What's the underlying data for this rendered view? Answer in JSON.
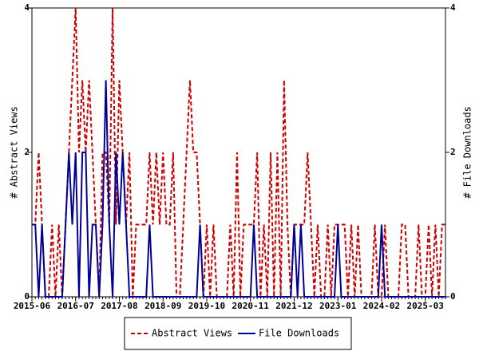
{
  "chart_data": {
    "type": "line",
    "x": [
      "2015-06",
      "2015-07",
      "2015-08",
      "2015-09",
      "2015-10",
      "2015-11",
      "2015-12",
      "2016-01",
      "2016-02",
      "2016-03",
      "2016-04",
      "2016-05",
      "2016-06",
      "2016-07",
      "2016-08",
      "2016-09",
      "2016-10",
      "2016-11",
      "2016-12",
      "2017-01",
      "2017-02",
      "2017-03",
      "2017-04",
      "2017-05",
      "2017-06",
      "2017-07",
      "2017-08",
      "2017-09",
      "2017-10",
      "2017-11",
      "2017-12",
      "2018-01",
      "2018-02",
      "2018-03",
      "2018-04",
      "2018-05",
      "2018-06",
      "2018-07",
      "2018-08",
      "2018-09",
      "2018-10",
      "2018-11",
      "2018-12",
      "2019-01",
      "2019-02",
      "2019-03",
      "2019-04",
      "2019-05",
      "2019-06",
      "2019-07",
      "2019-08",
      "2019-09",
      "2019-10",
      "2019-11",
      "2019-12",
      "2020-01",
      "2020-02",
      "2020-03",
      "2020-04",
      "2020-05",
      "2020-06",
      "2020-07",
      "2020-08",
      "2020-09",
      "2020-10",
      "2020-11",
      "2020-12",
      "2021-01",
      "2021-02",
      "2021-03",
      "2021-04",
      "2021-05",
      "2021-06",
      "2021-07",
      "2021-08",
      "2021-09",
      "2021-10",
      "2021-11",
      "2021-12",
      "2022-01",
      "2022-02",
      "2022-03",
      "2022-04",
      "2022-05",
      "2022-06",
      "2022-07",
      "2022-08",
      "2022-09",
      "2022-10",
      "2022-11",
      "2022-12",
      "2023-01",
      "2023-02",
      "2023-03",
      "2023-04",
      "2023-05",
      "2023-06",
      "2023-07",
      "2023-08",
      "2023-09",
      "2023-10",
      "2023-11",
      "2023-12",
      "2024-01",
      "2024-02",
      "2024-03",
      "2024-04",
      "2024-05",
      "2024-06",
      "2024-07",
      "2024-08",
      "2024-09",
      "2024-10",
      "2024-11",
      "2024-12",
      "2025-01",
      "2025-02",
      "2025-03",
      "2025-04",
      "2025-05",
      "2025-06",
      "2025-07",
      "2025-08",
      "2025-09"
    ],
    "xticks": [
      "2015-06",
      "2016-07",
      "2017-08",
      "2018-09",
      "2019-10",
      "2020-11",
      "2021-12",
      "2023-01",
      "2024-02",
      "2025-03"
    ],
    "y_label": "# Abstract Views",
    "y2_label": "# File Downloads",
    "ylim": [
      0,
      4
    ],
    "yticks": [
      0,
      2,
      4
    ],
    "y2lim": [
      0,
      4
    ],
    "y2ticks": [
      0,
      2,
      4
    ],
    "series": [
      {
        "name": "Abstract Views",
        "color": "#cc0000",
        "dash": true,
        "values": [
          1,
          1,
          2,
          1,
          0,
          0,
          1,
          0,
          1,
          0,
          1,
          2,
          3,
          4,
          2,
          3,
          2,
          3,
          2,
          1,
          0,
          2,
          2,
          1,
          4,
          1,
          3,
          2,
          1,
          2,
          0,
          1,
          1,
          1,
          1,
          2,
          1,
          2,
          1,
          2,
          1,
          1,
          2,
          0,
          0,
          1,
          2,
          3,
          2,
          2,
          1,
          0,
          1,
          0,
          1,
          0,
          0,
          0,
          0,
          1,
          0,
          2,
          0,
          1,
          1,
          1,
          1,
          2,
          0,
          1,
          0,
          2,
          0,
          2,
          0,
          3,
          1,
          0,
          1,
          1,
          1,
          1,
          2,
          1,
          0,
          1,
          0,
          0,
          1,
          0,
          1,
          1,
          1,
          1,
          0,
          1,
          0,
          1,
          0,
          0,
          0,
          0,
          1,
          0,
          0,
          1,
          0,
          0,
          0,
          0,
          1,
          1,
          0,
          0,
          0,
          1,
          0,
          0,
          1,
          0,
          1,
          0,
          1,
          1
        ]
      },
      {
        "name": "File Downloads",
        "color": "#000099",
        "axis": "y2",
        "values": [
          1,
          1,
          0,
          1,
          0,
          0,
          0,
          0,
          0,
          0,
          1,
          2,
          1,
          2,
          0,
          2,
          2,
          0,
          1,
          1,
          0,
          1,
          3,
          1,
          0,
          2,
          1,
          2,
          1,
          0,
          0,
          0,
          0,
          0,
          0,
          1,
          0,
          0,
          0,
          0,
          0,
          0,
          0,
          0,
          0,
          0,
          0,
          0,
          0,
          0,
          1,
          0,
          0,
          0,
          0,
          0,
          0,
          0,
          0,
          0,
          0,
          0,
          0,
          0,
          0,
          0,
          1,
          0,
          0,
          0,
          0,
          0,
          0,
          0,
          0,
          0,
          0,
          0,
          1,
          0,
          1,
          0,
          0,
          0,
          0,
          0,
          0,
          0,
          0,
          0,
          0,
          1,
          0,
          0,
          0,
          0,
          0,
          0,
          0,
          0,
          0,
          0,
          0,
          0,
          1,
          0,
          0,
          0,
          0,
          0,
          0,
          0,
          0,
          0,
          0,
          0,
          0,
          0,
          0,
          0,
          0,
          0,
          0,
          0
        ]
      }
    ]
  }
}
